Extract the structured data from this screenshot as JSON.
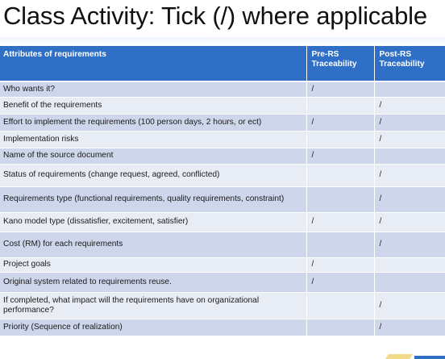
{
  "slide": {
    "title": "Class Activity: Tick (/) where applicable"
  },
  "table": {
    "headers": {
      "attribute": "Attributes of requirements",
      "pre_line1": "Pre-RS",
      "pre_line2": "Traceability",
      "post_line1": "Post-RS",
      "post_line2": "Traceability"
    },
    "rows": [
      {
        "attribute": "Who wants it?",
        "pre": "/",
        "post": ""
      },
      {
        "attribute": "Benefit of the requirements",
        "pre": "",
        "post": "/"
      },
      {
        "attribute": "Effort to implement the requirements (100 person days, 2 hours, or ect)",
        "pre": "/",
        "post": "/"
      },
      {
        "attribute": "Implementation risks",
        "pre": "",
        "post": "/"
      },
      {
        "attribute": "Name of the source document",
        "pre": "/",
        "post": ""
      },
      {
        "attribute": "Status of requirements (change request, agreed, conflicted)",
        "pre": "",
        "post": "/"
      },
      {
        "attribute": "Requirements type (functional requirements, quality requirements, constraint)",
        "pre": "",
        "post": "/"
      },
      {
        "attribute": "Kano model type (dissatisfier, excitement, satisfier)",
        "pre": "/",
        "post": "/"
      },
      {
        "attribute": "Cost (RM) for each requirements",
        "pre": "",
        "post": "/"
      },
      {
        "attribute": "Project goals",
        "pre": "/",
        "post": ""
      },
      {
        "attribute": "Original system related to requirements reuse.",
        "pre": "/",
        "post": ""
      },
      {
        "attribute": "If completed, what impact will the requirements have on organizational performance?",
        "pre": "",
        "post": "/"
      },
      {
        "attribute": "Priority (Sequence of realization)",
        "pre": "",
        "post": "/"
      }
    ]
  },
  "colors": {
    "header_bg": "#2f6fc6",
    "row_dark": "#cdd6ea",
    "row_light": "#e8ecf5"
  }
}
